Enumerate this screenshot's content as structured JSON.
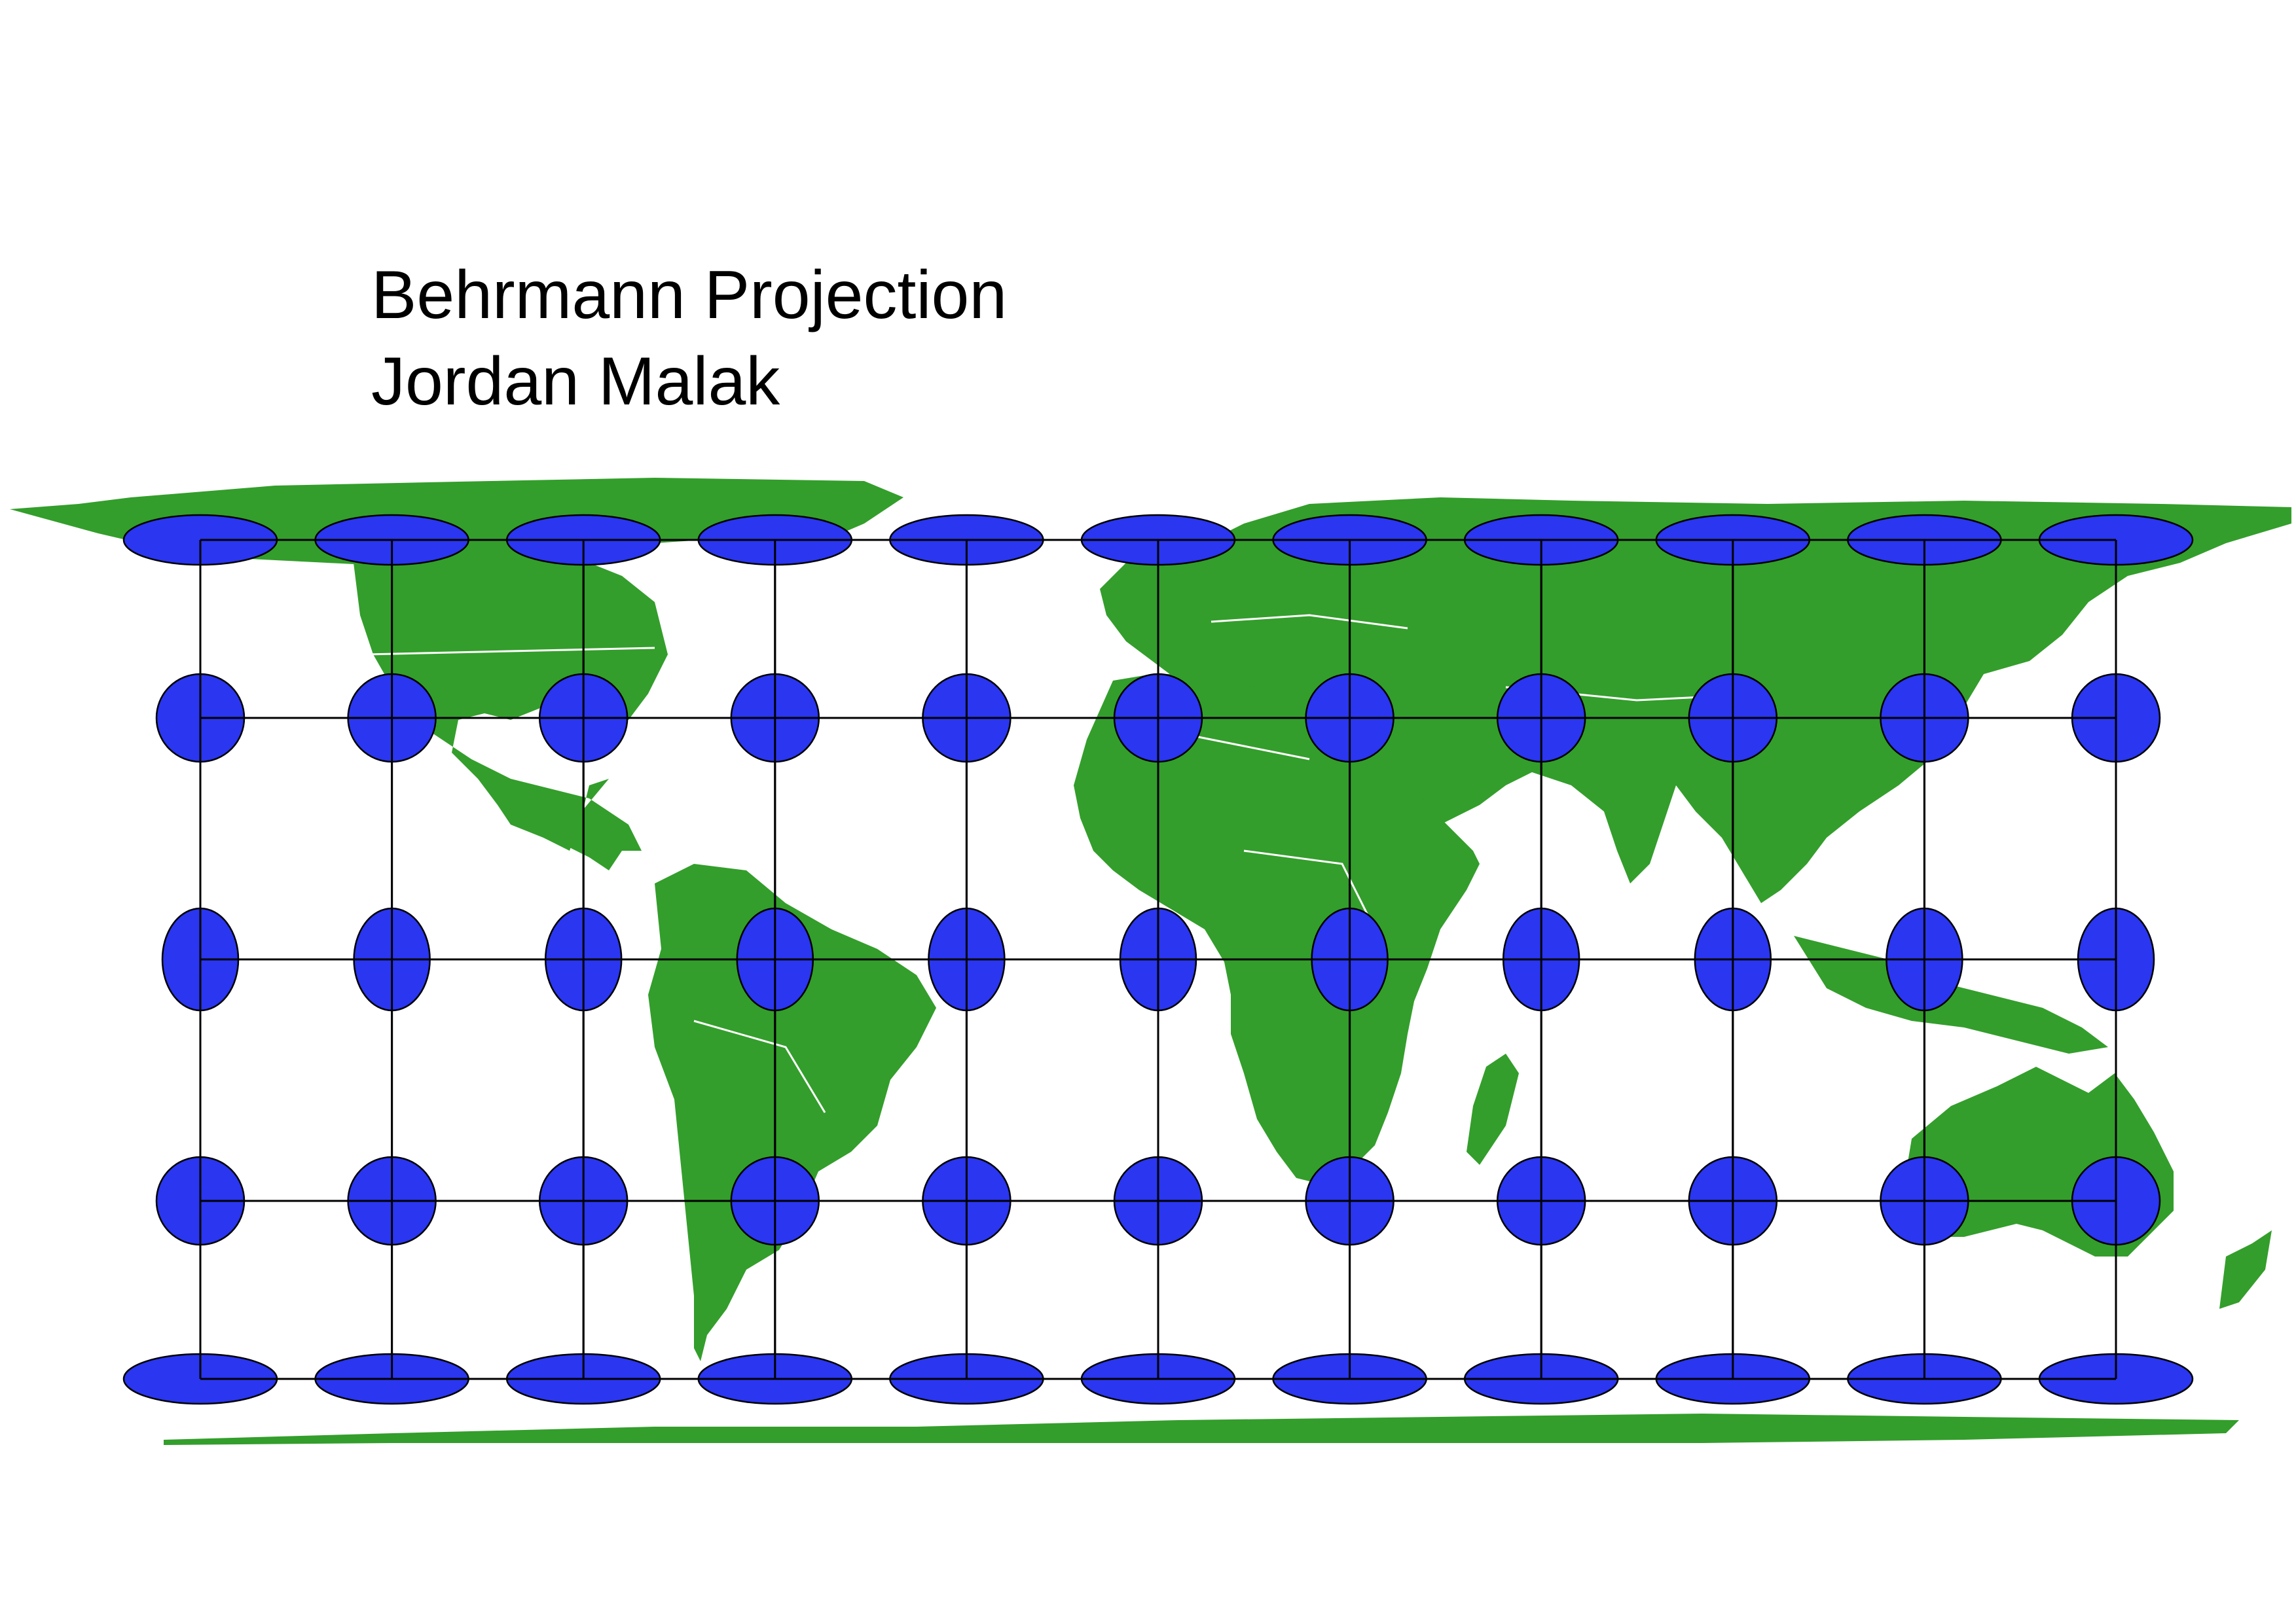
{
  "title": "Behrmann Projection",
  "author": "Jordan Malak",
  "colors": {
    "land": "#339e2b",
    "border": "#ffffff",
    "ellipse_fill": "#2a36f0",
    "ellipse_stroke": "#000000",
    "graticule": "#000000",
    "background": "#ffffff"
  },
  "projection": "behrmann",
  "graticule": {
    "longitudes": [
      -150,
      -120,
      -90,
      -60,
      -30,
      0,
      30,
      60,
      90,
      120,
      150
    ],
    "latitudes": [
      -80,
      -40,
      0,
      40,
      80
    ]
  },
  "indicatrix": {
    "shape_by_latitude": {
      "80": "wide-flat",
      "40": "near-circular",
      "0": "tall",
      "-40": "near-circular",
      "-80": "wide-flat"
    }
  },
  "icons": {
    "indicatrix": "tissot-ellipse-icon"
  }
}
